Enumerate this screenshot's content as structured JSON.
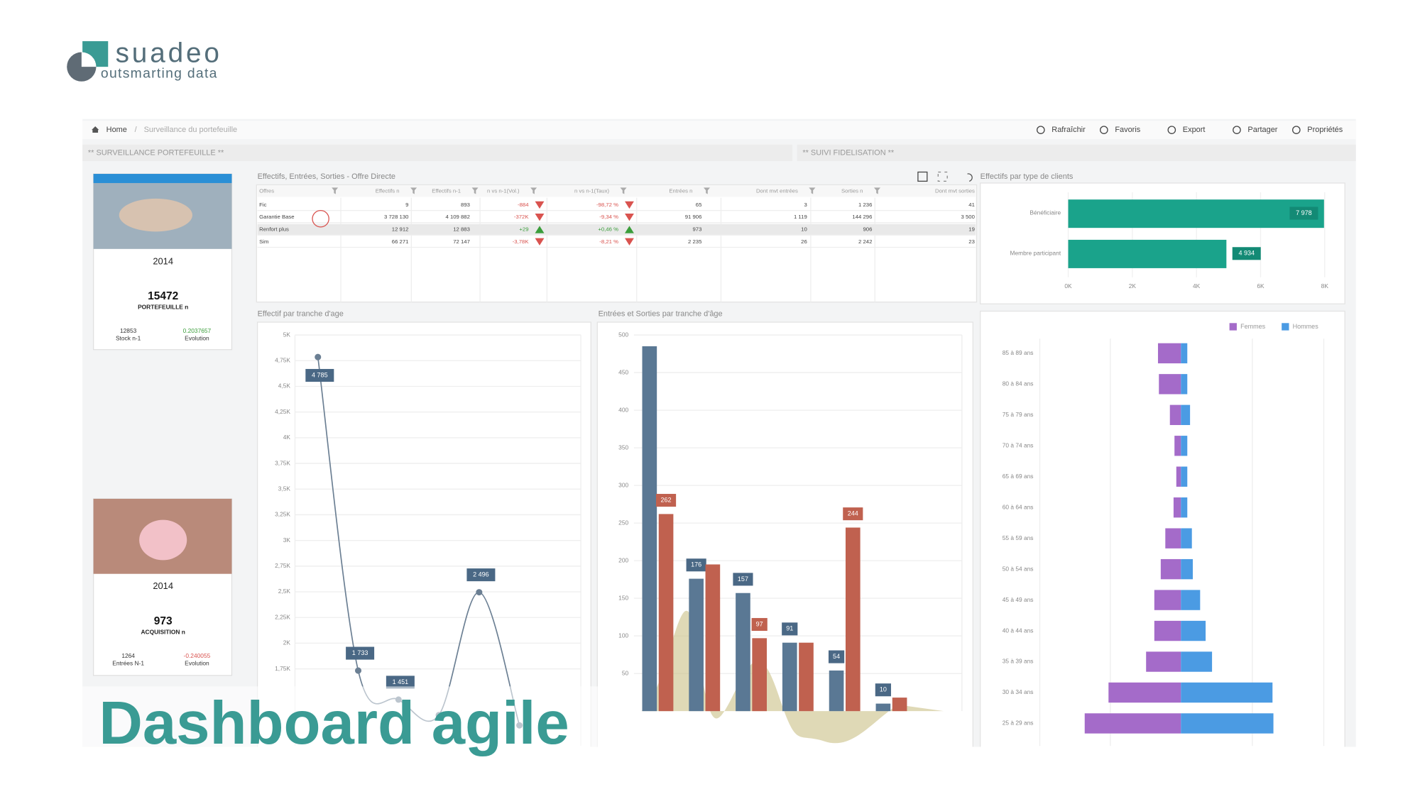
{
  "logo": {
    "name": "suadeo",
    "tagline": "outsmarting data"
  },
  "breadcrumb": [
    "Home",
    "Surveillance du portefeuille"
  ],
  "toolbar": [
    "Rafraîchir",
    "Favoris",
    "Export",
    "Partager",
    "Propriétés"
  ],
  "sections": [
    "** SURVEILLANCE PORTEFEUILLE **",
    "** SUIVI FIDELISATION **"
  ],
  "cards": [
    {
      "year": "2014",
      "value": "15472",
      "label": "PORTEFEUILLE n",
      "left_value": "12853",
      "left_label": "Stock n-1",
      "right_value": "0.2037657",
      "right_label": "Evolution"
    },
    {
      "year": "2014",
      "value": "973",
      "label": "ACQUISITION n",
      "left_value": "1264",
      "left_label": "Entrées N-1",
      "right_value": "-0.240055",
      "right_label": "Evolution"
    }
  ],
  "table": {
    "title": "Effectifs, Entrées, Sorties - Offre Directe",
    "columns": [
      "Offres",
      "Effectifs n",
      "Effectifs n-1",
      "n vs n-1(Vol.)",
      "n vs n-1(Taux)",
      "Entrées n",
      "Dont mvt entrées",
      "Sorties n",
      "Dont mvt sorties"
    ],
    "rows": [
      [
        "Fic",
        "9",
        "893",
        "-884",
        "-98,72 %",
        "65",
        "3",
        "1 236",
        "41"
      ],
      [
        "Garantie Base",
        "3 728 130",
        "4 109 882",
        "-372K",
        "-9,34 %",
        "91 906",
        "1 119",
        "144 296",
        "3 500"
      ],
      [
        "Renfort plus",
        "12 912",
        "12 883",
        "+29",
        "+0,46 %",
        "973",
        "10",
        "906",
        "19"
      ],
      [
        "Sim",
        "66 271",
        "72 147",
        "-3,78K",
        "-8,21 %",
        "2 235",
        "26",
        "2 242",
        "23"
      ]
    ]
  },
  "charts": [
    {
      "type": "line",
      "title": "Effectif par tranche d'age",
      "categories": [
        null,
        null,
        null,
        null,
        null,
        null
      ],
      "values": [
        4785,
        1733,
        1451,
        1300,
        2496,
        1200
      ],
      "value_labels": [
        "4 785",
        "1 733",
        "1 451",
        null,
        "2 496",
        null
      ],
      "color": "#6b7f93",
      "ylim": [
        1000,
        5000
      ],
      "yticks": [
        {
          "value": 1750,
          "label": "1,75K"
        },
        {
          "value": 2000,
          "label": "2K"
        },
        {
          "value": 2250,
          "label": "2,25K"
        },
        {
          "value": 2500,
          "label": "2,5K"
        },
        {
          "value": 2750,
          "label": "2,75K"
        },
        {
          "value": 3000,
          "label": "3K"
        },
        {
          "value": 3250,
          "label": "3,25K"
        },
        {
          "value": 3500,
          "label": "3,5K"
        },
        {
          "value": 3750,
          "label": "3,75K"
        },
        {
          "value": 4000,
          "label": "4K"
        },
        {
          "value": 4250,
          "label": "4,25K"
        },
        {
          "value": 4500,
          "label": "4,5K"
        },
        {
          "value": 4750,
          "label": "4,75K"
        },
        {
          "value": 5000,
          "label": "5K"
        }
      ],
      "grid": true
    },
    {
      "type": "bar",
      "title": "Entrées et Sorties par tranche d'âge",
      "categories": [
        null,
        null,
        null,
        null,
        null,
        null
      ],
      "series": [
        {
          "color": "#5a7894",
          "values": [
            485,
            176,
            157,
            91,
            54,
            10
          ],
          "value_labels": [
            null,
            "176",
            "157",
            "91",
            "54",
            "10"
          ]
        },
        {
          "color": "#c0614f",
          "values": [
            262,
            195,
            97,
            91,
            244,
            18
          ],
          "value_labels": [
            "262",
            null,
            "97",
            null,
            "244",
            null
          ]
        }
      ],
      "ylim": [
        0,
        500
      ],
      "yticks": [
        50,
        100,
        150,
        200,
        250,
        300,
        350,
        400,
        450,
        500
      ],
      "grid": true
    },
    {
      "type": "hbar",
      "title": "Effectifs par type de clients",
      "categories": [
        "Bénéficiaire",
        "Membre participant"
      ],
      "values": [
        7978,
        4934
      ],
      "value_labels": [
        "7 978",
        "4 934"
      ],
      "color": "#1aa38b",
      "xlim": [
        0,
        8000
      ],
      "xticks": [
        {
          "value": 0,
          "label": "0K"
        },
        {
          "value": 2000,
          "label": "2K"
        },
        {
          "value": 4000,
          "label": "4K"
        },
        {
          "value": 6000,
          "label": "6K"
        },
        {
          "value": 8000,
          "label": "8K"
        }
      ]
    },
    {
      "type": "pyramid",
      "categories": [
        "85 à 89 ans",
        "80 à 84 ans",
        "75 à 79 ans",
        "70 à 74 ans",
        "65 à 69 ans",
        "60 à 64 ans",
        "55 à 59 ans",
        "50 à 54 ans",
        "45 à 49 ans",
        "40 à 44 ans",
        "35 à 39 ans",
        "30 à 34 ans",
        "25 à 29 ans"
      ],
      "series": [
        {
          "name": "Femmes",
          "color": "#a46bc9",
          "values": [
            25,
            24,
            12,
            7,
            5,
            8,
            17,
            22,
            29,
            29,
            38,
            79,
            105
          ]
        },
        {
          "name": "Hommes",
          "color": "#4b9be3",
          "values": [
            7,
            7,
            10,
            7,
            7,
            7,
            12,
            13,
            21,
            27,
            34,
            100,
            101
          ]
        }
      ],
      "xlim": [
        -155,
        155
      ],
      "legend": "top-right"
    }
  ],
  "caption": "Dashboard agile"
}
